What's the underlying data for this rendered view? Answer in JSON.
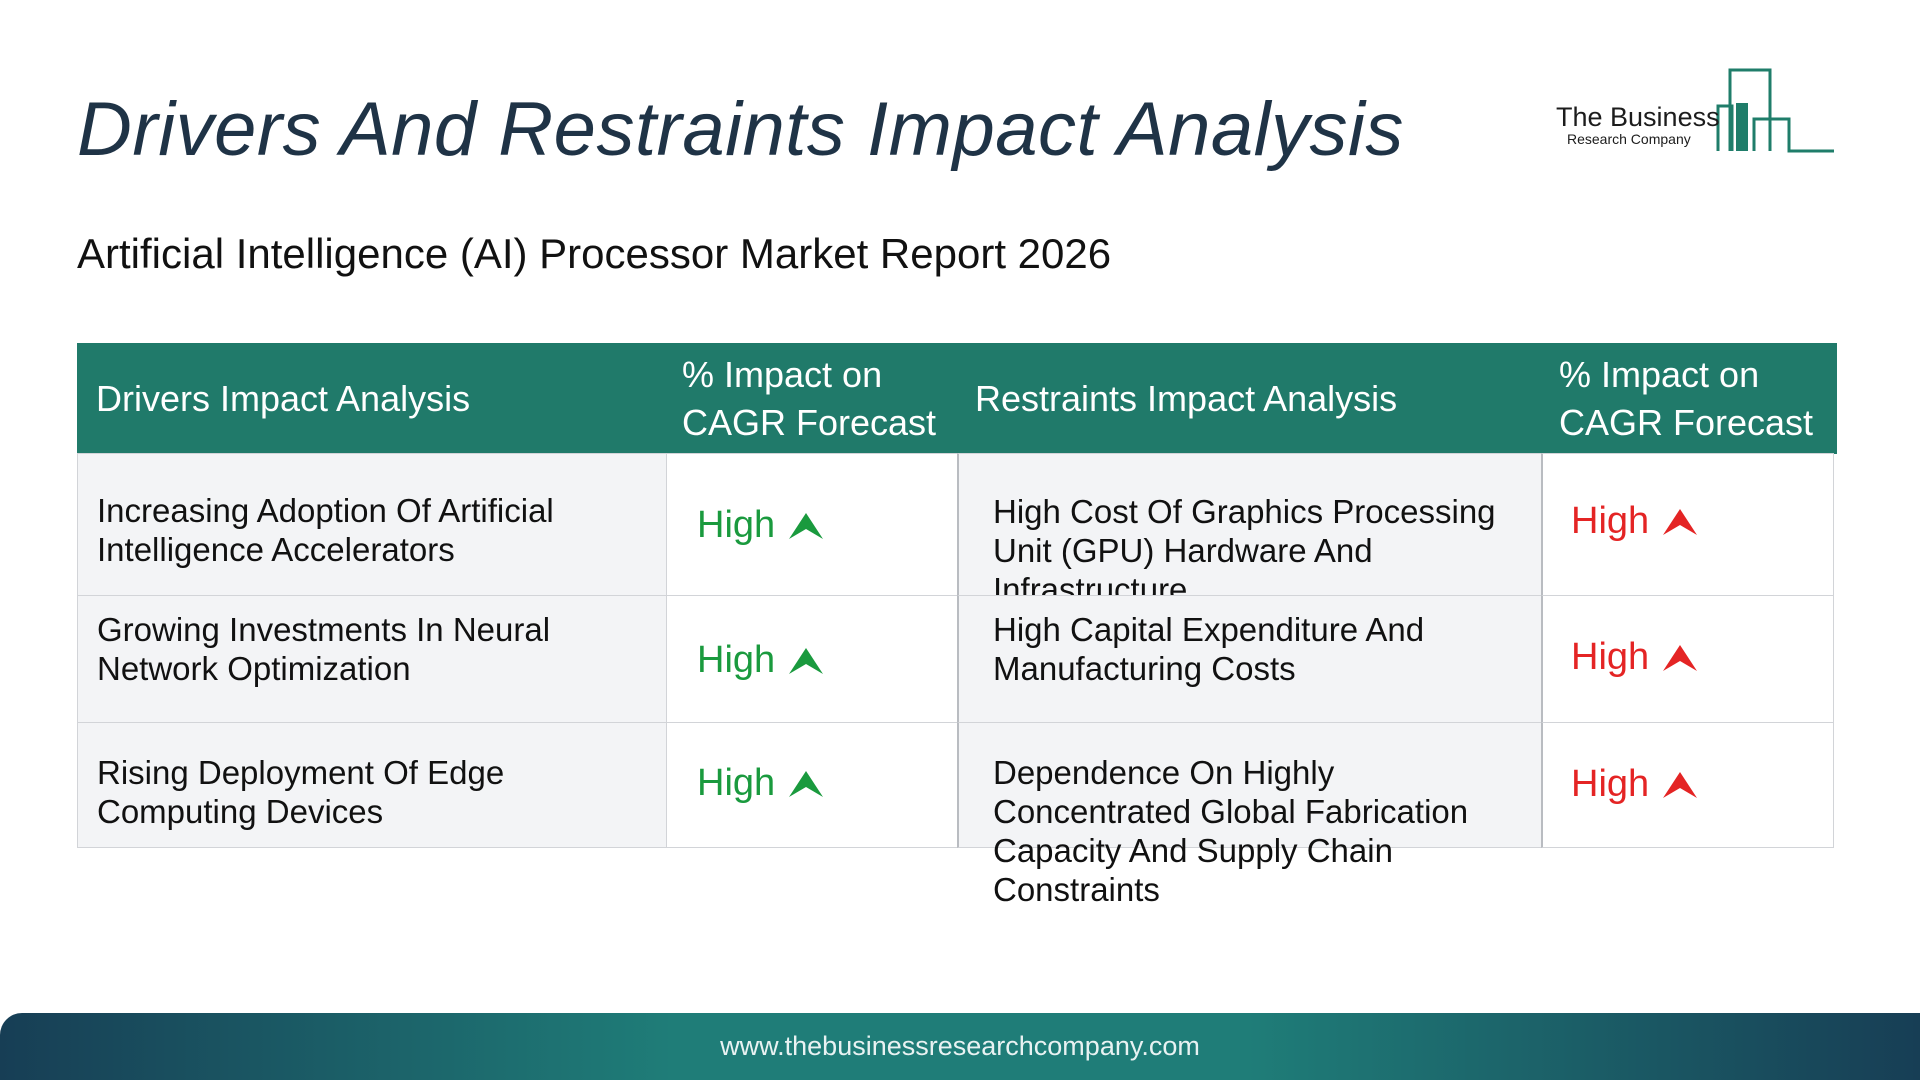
{
  "header": {
    "title": "Drivers And Restraints Impact Analysis",
    "subtitle": "Artificial Intelligence (AI) Processor Market Report 2026"
  },
  "logo": {
    "name": "The Business",
    "sub": "Research Company",
    "color": "#1f7d6a"
  },
  "table": {
    "headers": {
      "drivers": "Drivers Impact Analysis",
      "drivers_impact": "% Impact on CAGR Forecast",
      "restraints": "Restraints Impact Analysis",
      "restraints_impact": "% Impact on CAGR Forecast"
    },
    "rows": [
      {
        "driver": "Increasing Adoption Of Artificial Intelligence Accelerators",
        "driver_impact": "High",
        "restraint": "High Cost Of Graphics Processing Unit (GPU) Hardware And Infrastructure",
        "restraint_impact": "High"
      },
      {
        "driver": "Growing Investments In Neural Network Optimization",
        "driver_impact": "High",
        "restraint": "High Capital Expenditure And Manufacturing Costs",
        "restraint_impact": "High"
      },
      {
        "driver": "Rising Deployment Of Edge Computing Devices",
        "driver_impact": "High",
        "restraint": "Dependence On Highly Concentrated Global Fabrication Capacity And Supply Chain Constraints",
        "restraint_impact": "High"
      }
    ],
    "driver_icon": "arrow-up-icon",
    "restraint_icon": "arrow-up-icon",
    "colors": {
      "header_bg": "#207a6a",
      "driver_impact": "#1a9a3e",
      "restraint_impact": "#e42424"
    }
  },
  "footer": {
    "url": "www.thebusinessresearchcompany.com"
  }
}
